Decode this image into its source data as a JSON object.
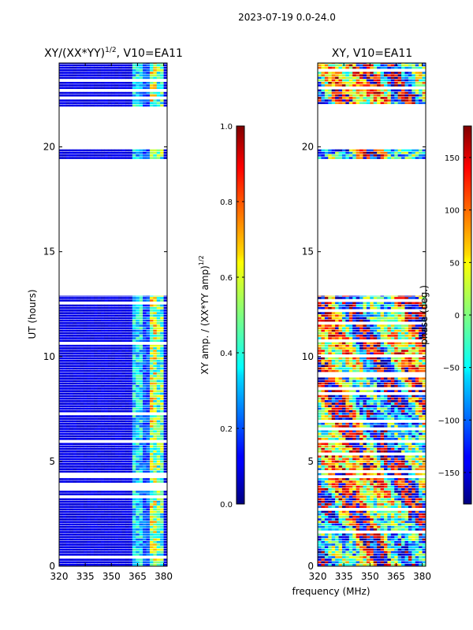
{
  "suptitle": "2023-07-19 0.0-24.0",
  "xlabel": "frequency (MHz)",
  "colors": {
    "background": "#ffffff",
    "frame": "#000000",
    "gap": "#ffffff"
  },
  "chart_data": [
    {
      "type": "heatmap",
      "id": "amp",
      "title": "XY/(XX*YY)",
      "title_sup": "1/2",
      "title_rest": ", V10=EA11",
      "ylabel": "UT (hours)",
      "xlim": [
        320,
        382
      ],
      "ylim": [
        0,
        24
      ],
      "xticks": [
        320,
        335,
        350,
        365,
        380
      ],
      "yticks": [
        0,
        5,
        10,
        15,
        20
      ],
      "colorbar": {
        "label": "XY amp. / (XX*YY amp)",
        "label_sup": "1/2",
        "cmap": "jet",
        "range": [
          0.0,
          1.0
        ],
        "ticks": [
          "0.0",
          "0.2",
          "0.4",
          "0.6",
          "0.8",
          "1.0"
        ],
        "tick_values": [
          0.0,
          0.2,
          0.4,
          0.6,
          0.8,
          1.0
        ]
      },
      "data_coverage_hours": [
        [
          0.0,
          12.9
        ],
        [
          19.4,
          20.0
        ],
        [
          21.9,
          24.0
        ]
      ],
      "band_features": [
        {
          "freq_range": [
            362,
            368
          ],
          "level": 0.35
        },
        {
          "freq_range": [
            368,
            372
          ],
          "level": 0.2
        },
        {
          "freq_range": [
            372,
            377
          ],
          "level": 0.55
        },
        {
          "freq_range": [
            377,
            381
          ],
          "level": 0.45
        }
      ],
      "base_level": 0.08
    },
    {
      "type": "heatmap",
      "id": "phase",
      "title": "XY, V10=EA11",
      "xlim": [
        320,
        382
      ],
      "ylim": [
        0,
        24
      ],
      "xticks": [
        320,
        335,
        350,
        365,
        380
      ],
      "yticks": [
        0,
        5,
        10,
        15,
        20
      ],
      "colorbar": {
        "label": "phase (deg.)",
        "cmap": "jet",
        "range": [
          -180,
          180
        ],
        "ticks": [
          "150",
          "100",
          "50",
          "0",
          "−50",
          "−100",
          "−150"
        ],
        "tick_values": [
          150,
          100,
          50,
          0,
          -50,
          -100,
          -150
        ]
      },
      "data_coverage_hours": [
        [
          0.0,
          12.9
        ],
        [
          19.4,
          20.0
        ],
        [
          21.9,
          24.0
        ]
      ],
      "phase_range_deg": [
        -180,
        180
      ]
    }
  ]
}
